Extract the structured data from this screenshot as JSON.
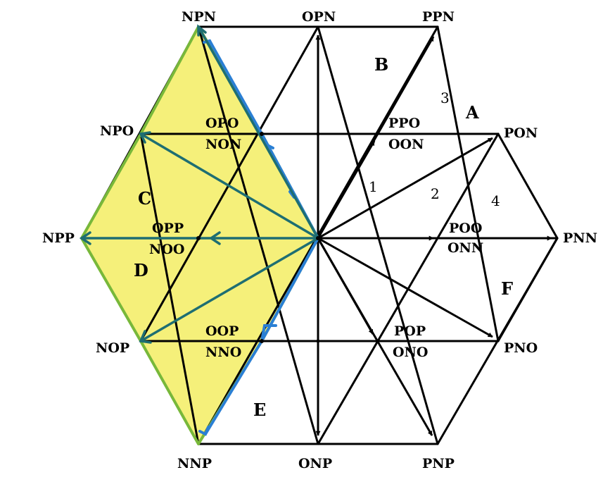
{
  "colors": {
    "line": "#000000",
    "highlight_fill": "#f5f07a",
    "outline_green": "#78b83a",
    "teal_arrow": "#1e6e72",
    "blue_arrow": "#2a7fd4"
  },
  "vertex_labels": {
    "npn": "NPN",
    "opn": "OPN",
    "ppn": "PPN",
    "npo": "NPO",
    "opo": "OPO",
    "non": "NON",
    "ppo": "PPO",
    "oon": "OON",
    "pon": "PON",
    "npp": "NPP",
    "opp": "OPP",
    "noo": "NOO",
    "poo": "POO",
    "onn": "ONN",
    "pnn": "PNN",
    "nop": "NOP",
    "oop": "OOP",
    "nno": "NNO",
    "pop": "POP",
    "ono": "ONO",
    "pno": "PNO",
    "nnp": "NNP",
    "onp": "ONP",
    "pnp": "PNP"
  },
  "sector_labels": {
    "a": "A",
    "b": "B",
    "c": "C",
    "d": "D",
    "e": "E",
    "f": "F"
  },
  "region_numbers": {
    "n1": "1",
    "n2": "2",
    "n3": "3",
    "n4": "4"
  }
}
